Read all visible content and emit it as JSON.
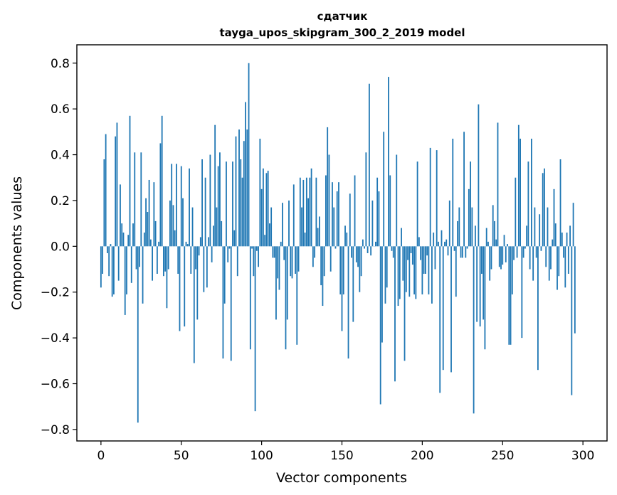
{
  "chart_data": {
    "type": "bar",
    "title": "сдатчик",
    "subtitle": "tayga_upos_skipgram_300_2_2019 model",
    "xlabel": "Vector components",
    "ylabel": "Components values",
    "xlim": [
      -15,
      315
    ],
    "ylim": [
      -0.85,
      0.88
    ],
    "xticks": [
      0,
      50,
      100,
      150,
      200,
      250,
      300
    ],
    "yticks": [
      -0.8,
      -0.6,
      -0.4,
      -0.2,
      0.0,
      0.2,
      0.4,
      0.6,
      0.8
    ],
    "ytick_labels": [
      "−0.8",
      "−0.6",
      "−0.4",
      "−0.2",
      "0.0",
      "0.2",
      "0.4",
      "0.6",
      "0.8"
    ],
    "grid": false,
    "bar_color": "#1f77b4",
    "values": [
      -0.18,
      -0.12,
      0.38,
      0.49,
      -0.03,
      -0.13,
      0.01,
      -0.22,
      -0.21,
      0.48,
      0.54,
      -0.15,
      0.27,
      0.1,
      0.06,
      -0.3,
      -0.21,
      0.05,
      0.57,
      -0.16,
      0.1,
      0.41,
      -0.1,
      -0.77,
      -0.09,
      0.41,
      -0.25,
      0.06,
      0.21,
      0.15,
      0.29,
      0.03,
      -0.15,
      0.28,
      0.11,
      -0.12,
      0.02,
      0.45,
      0.57,
      -0.13,
      -0.11,
      -0.27,
      -0.1,
      0.2,
      0.36,
      0.18,
      0.07,
      0.36,
      -0.12,
      -0.37,
      0.35,
      0.21,
      -0.35,
      0.02,
      0.01,
      0.34,
      -0.12,
      0.17,
      -0.51,
      -0.1,
      -0.32,
      -0.04,
      0.04,
      0.38,
      -0.2,
      0.3,
      -0.18,
      0.04,
      0.4,
      -0.07,
      0.09,
      0.53,
      0.17,
      0.35,
      0.41,
      0.11,
      -0.49,
      -0.25,
      0.37,
      -0.07,
      -0.01,
      -0.5,
      0.37,
      0.07,
      0.48,
      -0.13,
      0.51,
      0.38,
      0.3,
      0.46,
      0.63,
      0.51,
      0.8,
      -0.45,
      -0.01,
      -0.13,
      -0.72,
      -0.02,
      -0.09,
      0.47,
      0.25,
      0.34,
      0.05,
      0.32,
      0.33,
      0.1,
      0.17,
      -0.05,
      -0.05,
      -0.32,
      -0.14,
      -0.19,
      0.02,
      0.19,
      -0.06,
      -0.45,
      -0.32,
      0.2,
      -0.13,
      -0.14,
      0.27,
      -0.12,
      -0.43,
      -0.11,
      0.3,
      0.17,
      0.29,
      0.06,
      0.3,
      0.21,
      0.3,
      0.34,
      -0.09,
      -0.05,
      0.3,
      0.08,
      0.13,
      -0.17,
      -0.26,
      -0.13,
      0.31,
      0.52,
      0.4,
      -0.11,
      0.28,
      0.17,
      -0.01,
      0.24,
      0.28,
      -0.21,
      -0.37,
      -0.21,
      0.09,
      0.06,
      -0.49,
      0.23,
      -0.05,
      -0.33,
      0.31,
      -0.07,
      -0.09,
      -0.2,
      -0.13,
      0.03,
      -0.01,
      0.41,
      -0.03,
      0.71,
      -0.04,
      0.2,
      0.0,
      0.02,
      0.3,
      0.24,
      -0.69,
      -0.42,
      0.5,
      -0.25,
      -0.18,
      0.74,
      0.31,
      -0.02,
      -0.05,
      -0.59,
      0.4,
      -0.26,
      -0.23,
      0.08,
      -0.15,
      -0.5,
      -0.2,
      -0.06,
      -0.22,
      -0.03,
      -0.08,
      -0.21,
      -0.23,
      0.37,
      0.04,
      -0.06,
      -0.21,
      -0.12,
      -0.12,
      -0.04,
      -0.21,
      0.43,
      -0.25,
      0.06,
      -0.1,
      0.42,
      0.02,
      -0.64,
      0.07,
      -0.54,
      0.02,
      0.03,
      -0.04,
      0.2,
      -0.55,
      0.47,
      -0.02,
      -0.22,
      0.11,
      0.17,
      -0.05,
      -0.05,
      0.5,
      -0.05,
      -0.01,
      0.25,
      0.37,
      0.17,
      -0.73,
      0.09,
      -0.33,
      0.62,
      -0.35,
      -0.12,
      -0.32,
      -0.45,
      0.08,
      0.02,
      -0.15,
      -0.1,
      0.18,
      0.11,
      0.03,
      0.54,
      -0.09,
      -0.1,
      -0.08,
      0.05,
      -0.07,
      0.01,
      -0.43,
      -0.43,
      -0.21,
      -0.06,
      0.3,
      -0.05,
      0.53,
      0.47,
      -0.4,
      -0.05,
      -0.01,
      0.09,
      0.37,
      -0.1,
      0.47,
      -0.15,
      0.17,
      -0.05,
      -0.54,
      0.14,
      -0.02,
      0.32,
      0.34,
      -0.09,
      0.17,
      -0.15,
      -0.1,
      0.03,
      0.25,
      0.1,
      -0.19,
      -0.13,
      0.38,
      0.06,
      -0.05,
      -0.18,
      0.06,
      -0.12,
      0.09,
      -0.65,
      0.19,
      -0.38
    ]
  }
}
